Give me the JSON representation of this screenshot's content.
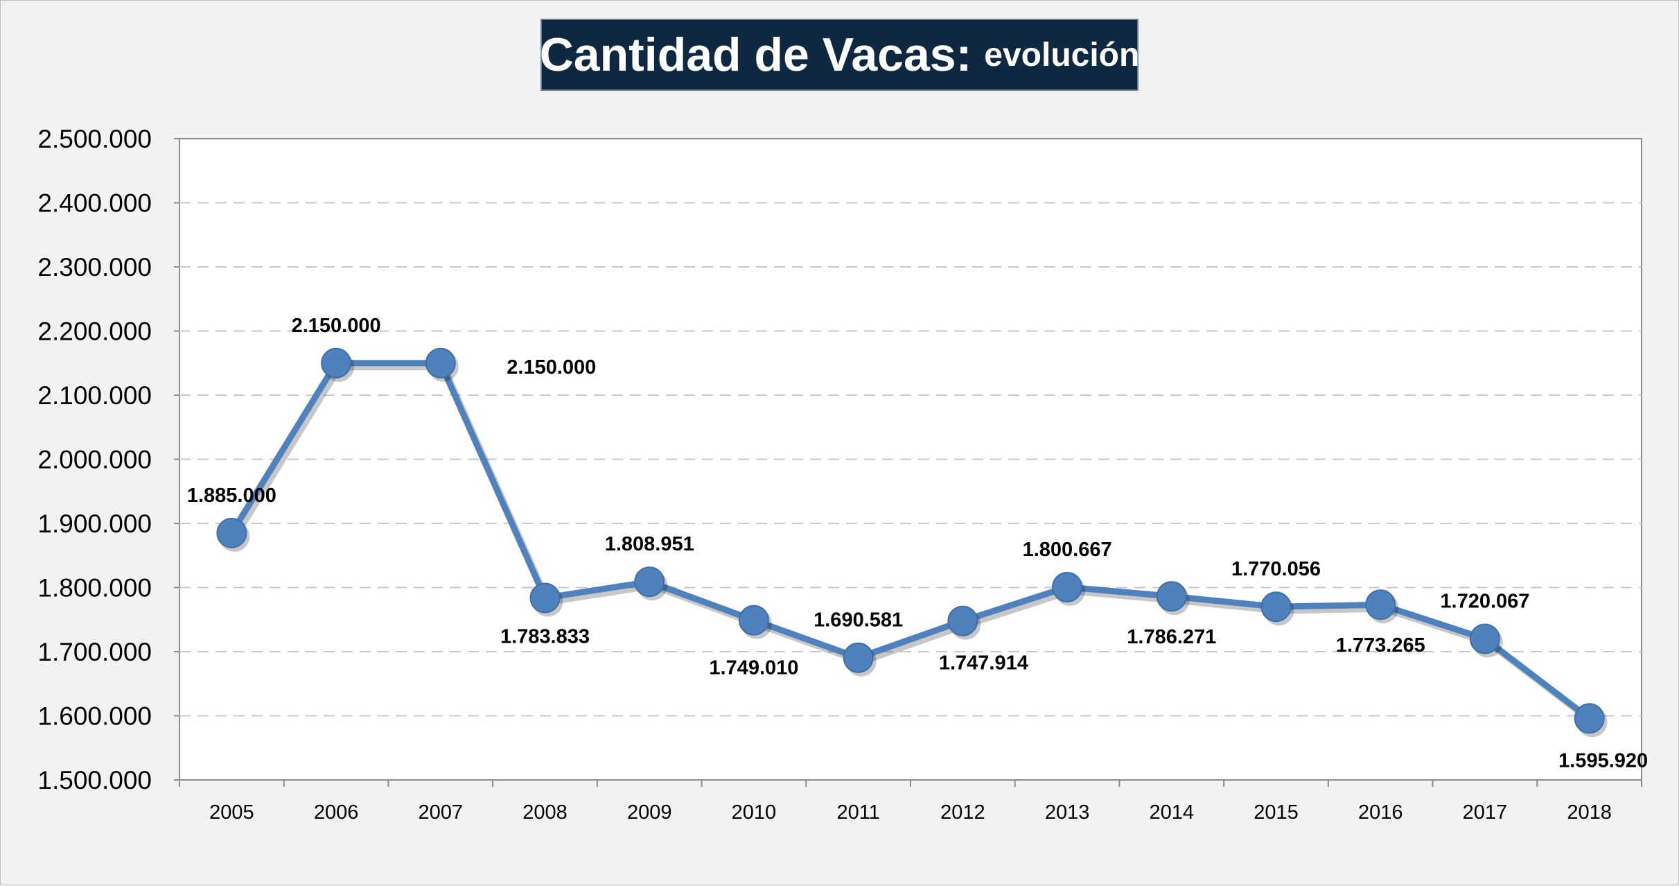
{
  "chart_data": {
    "type": "line",
    "title": "Cantidad de Vacas:",
    "subtitle": "evolución",
    "xlabel": "",
    "ylabel": "",
    "categories": [
      "2005",
      "2006",
      "2007",
      "2008",
      "2009",
      "2010",
      "2011",
      "2012",
      "2013",
      "2014",
      "2015",
      "2016",
      "2017",
      "2018"
    ],
    "values": [
      1885000,
      2150000,
      2150000,
      1783833,
      1808951,
      1749010,
      1690581,
      1747914,
      1800667,
      1786271,
      1770056,
      1773265,
      1720067,
      1595920
    ],
    "data_labels": [
      "1.885.000",
      "2.150.000",
      "2.150.000",
      "1.783.833",
      "1.808.951",
      "1.749.010",
      "1.690.581",
      "1.747.914",
      "1.800.667",
      "1.786.271",
      "1.770.056",
      "1.773.265",
      "1.720.067",
      "1.595.920"
    ],
    "yticks": [
      "1.500.000",
      "1.600.000",
      "1.700.000",
      "1.800.000",
      "1.900.000",
      "2.000.000",
      "2.100.000",
      "2.200.000",
      "2.300.000",
      "2.400.000",
      "2.500.000"
    ],
    "ylim": [
      1500000,
      2500000
    ],
    "grid": true,
    "legend": "none",
    "line_color": "#4f81bd",
    "marker_color": "#4f81bd"
  }
}
